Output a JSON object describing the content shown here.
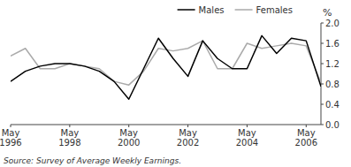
{
  "chart_data": {
    "type": "line",
    "ylabel": "%",
    "source": "Source: Survey of Average Weekly Earnings.",
    "categories": [
      "May\n1996",
      null,
      null,
      null,
      "May\n1998",
      null,
      null,
      null,
      "May\n2000",
      null,
      null,
      null,
      "May\n2002",
      null,
      null,
      null,
      "May\n2004",
      null,
      null,
      null,
      "May\n2006",
      null
    ],
    "series": [
      {
        "name": "Females",
        "color": "#aaaaaa",
        "values": [
          1.35,
          1.5,
          1.1,
          1.1,
          1.2,
          1.15,
          1.1,
          0.85,
          0.78,
          1.05,
          1.5,
          1.45,
          1.5,
          1.65,
          1.1,
          1.1,
          1.6,
          1.5,
          1.55,
          1.6,
          1.55,
          0.82
        ]
      },
      {
        "name": "Males",
        "color": "#000000",
        "values": [
          0.85,
          1.05,
          1.15,
          1.2,
          1.2,
          1.15,
          1.05,
          0.85,
          0.5,
          1.1,
          1.7,
          1.3,
          0.95,
          1.65,
          1.3,
          1.1,
          1.1,
          1.75,
          1.4,
          1.7,
          1.65,
          0.75
        ]
      }
    ],
    "ylim": [
      0,
      2.0
    ],
    "yticks": [
      {
        "value": 0,
        "label": "0.0"
      },
      0.4,
      0.8,
      1.2,
      1.6,
      {
        "value": 2.0,
        "label": "2.0"
      }
    ],
    "grid": false,
    "legend": "upper right"
  }
}
